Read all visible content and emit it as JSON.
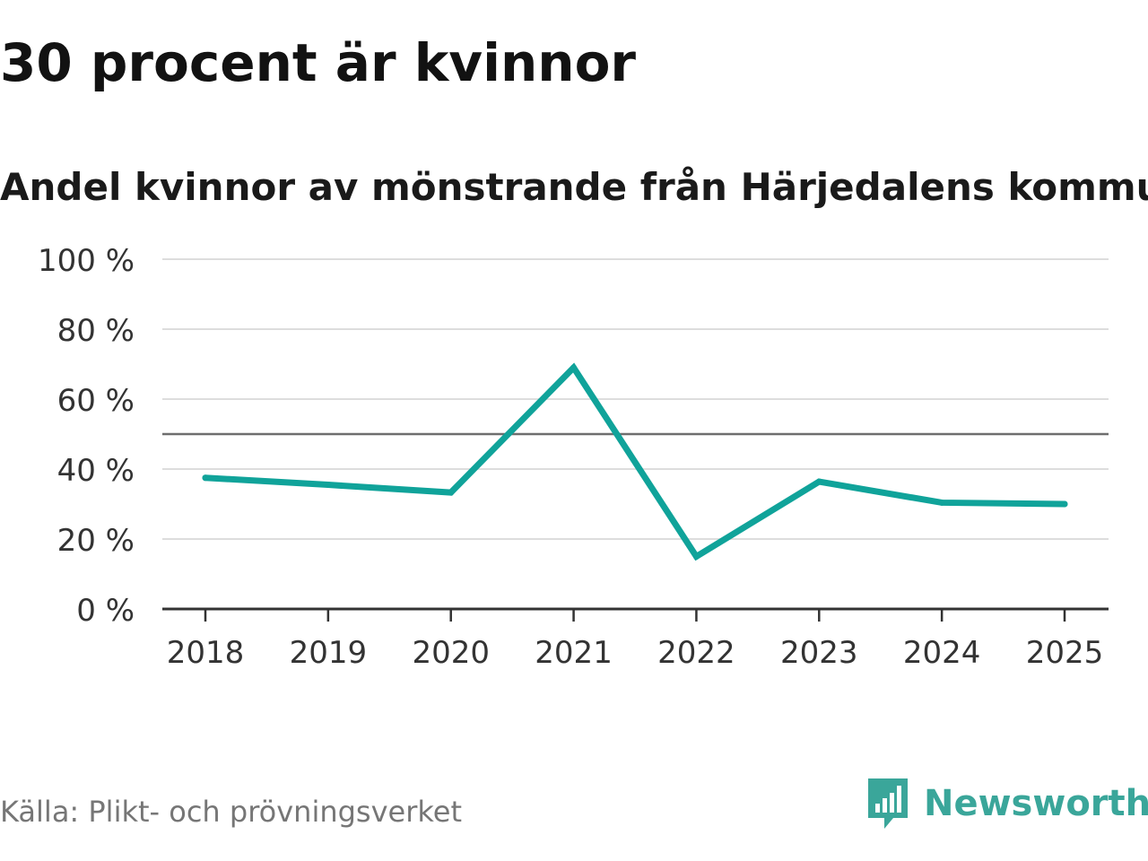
{
  "colors": {
    "line": "#10a39a",
    "grid": "#dddddd",
    "reference": "#6e6e6e",
    "axis": "#333333",
    "brand": "#3aa69a"
  },
  "source": "Källa: Plikt- och prövningsverket",
  "brand": {
    "name": "Newsworthy",
    "icon": "newsworthy-logo-icon"
  },
  "chart_data": {
    "type": "line",
    "title": "30 procent är kvinnor",
    "subtitle": "Andel kvinnor av mönstrande från Härjedalens kommun",
    "xlabel": "",
    "ylabel": "",
    "categories": [
      "2018",
      "2019",
      "2020",
      "2021",
      "2022",
      "2023",
      "2024",
      "2025"
    ],
    "series": [
      {
        "name": "Andel kvinnor",
        "values": [
          37.5,
          35.5,
          33.3,
          69.0,
          15.0,
          36.4,
          30.4,
          30.0
        ]
      }
    ],
    "ylim": [
      0,
      100
    ],
    "yticks": [
      0,
      20,
      40,
      60,
      80,
      100
    ],
    "ytick_labels": [
      "0 %",
      "20 %",
      "40 %",
      "60 %",
      "80 %",
      "100 %"
    ],
    "reference_line": 50,
    "grid": true
  }
}
